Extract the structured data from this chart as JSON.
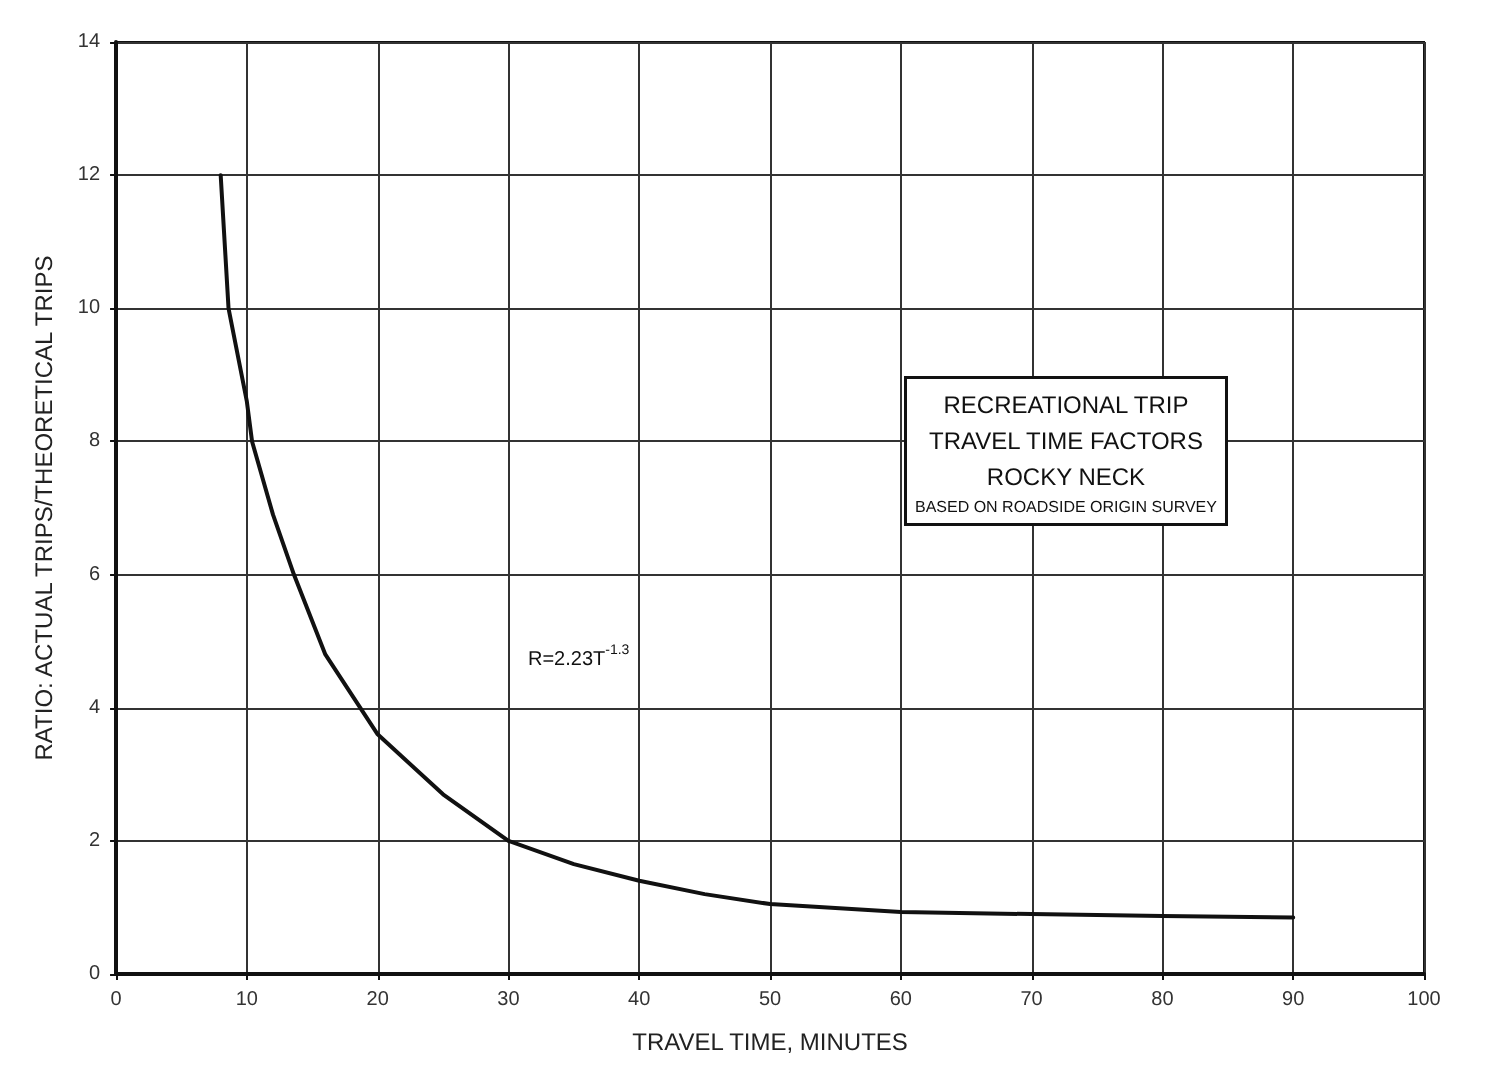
{
  "chart_data": {
    "type": "line",
    "xlabel": "TRAVEL TIME, MINUTES",
    "ylabel": "RATIO: ACTUAL TRIPS/THEORETICAL TRIPS",
    "x": [
      8,
      8.6,
      10,
      10.4,
      12,
      13.6,
      16,
      20,
      25,
      30,
      35,
      40,
      45,
      50,
      60,
      70,
      80,
      90
    ],
    "series": [
      {
        "color": "#111111",
        "values": [
          12,
          10,
          8.6,
          8,
          6.9,
          6,
          4.8,
          3.6,
          2.7,
          2.0,
          1.65,
          1.4,
          1.2,
          1.05,
          0.93,
          0.9,
          0.87,
          0.85
        ]
      }
    ],
    "xlim": [
      0,
      100
    ],
    "xticks": [
      0,
      10,
      20,
      30,
      40,
      50,
      60,
      70,
      80,
      90,
      100
    ],
    "ylim": [
      0,
      14
    ],
    "yticks": [
      0,
      2,
      4,
      6,
      8,
      10,
      12,
      14
    ],
    "grid": true,
    "marker": "none",
    "line_style": "solid",
    "annotations": [
      "RECREATIONAL TRIP\nTRAVEL TIME FACTORS\nROCKY NECK\nBASED ON ROADSIDE ORIGIN SURVEY",
      "R=2.23T$^{-1.3}$"
    ]
  }
}
